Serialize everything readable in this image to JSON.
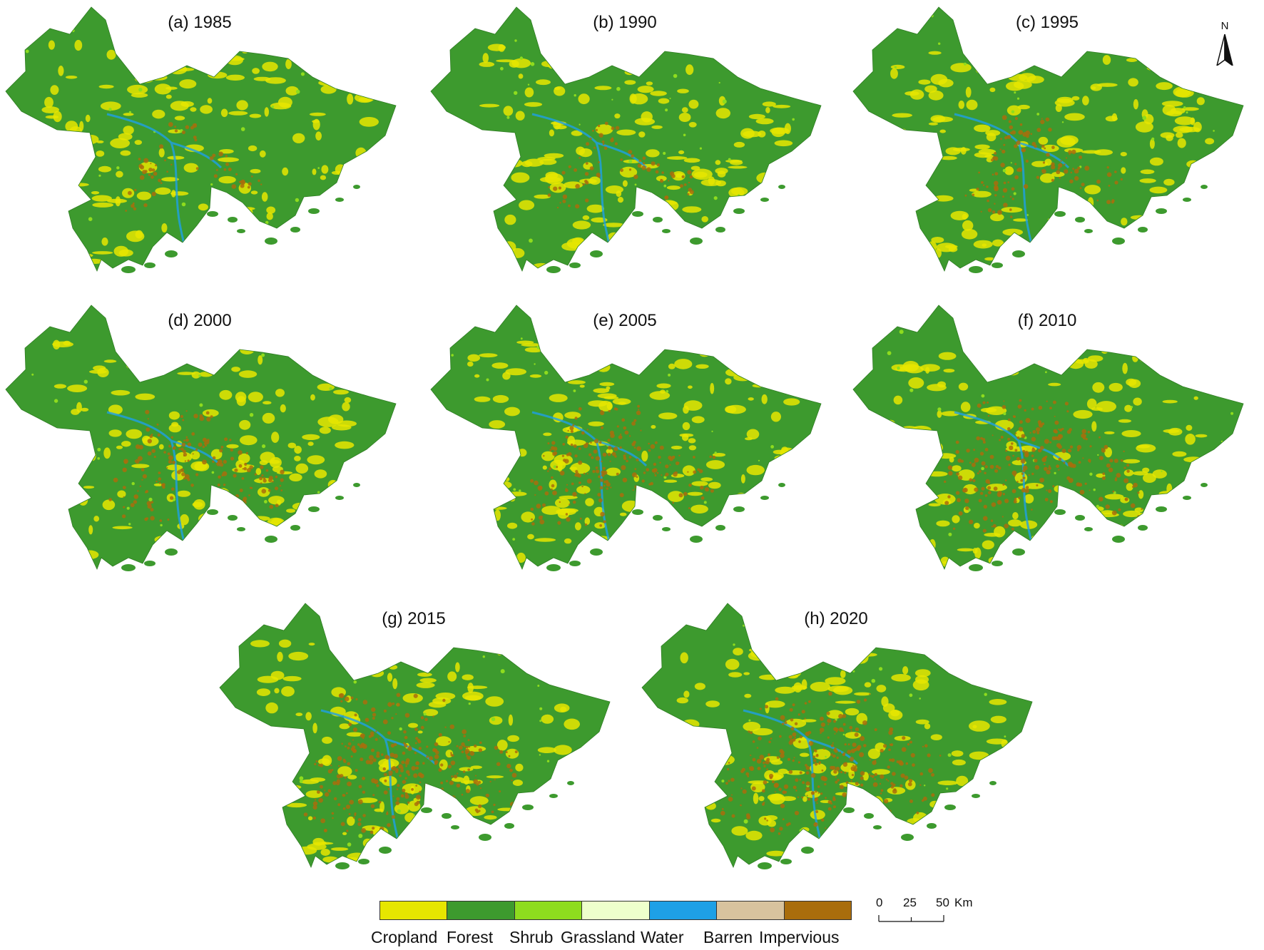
{
  "panels": [
    {
      "label": "(a) 1985",
      "year": 1985,
      "impervious_level": 0.05
    },
    {
      "label": "(b) 1990",
      "year": 1990,
      "impervious_level": 0.08
    },
    {
      "label": "(c) 1995",
      "year": 1995,
      "impervious_level": 0.18
    },
    {
      "label": "(d) 2000",
      "year": 2000,
      "impervious_level": 0.3
    },
    {
      "label": "(e) 2005",
      "year": 2005,
      "impervious_level": 0.4
    },
    {
      "label": "(f) 2010",
      "year": 2010,
      "impervious_level": 0.52
    },
    {
      "label": "(g) 2015",
      "year": 2015,
      "impervious_level": 0.6
    },
    {
      "label": "(h) 2020",
      "year": 2020,
      "impervious_level": 0.66
    }
  ],
  "north_arrow": {
    "label": "N"
  },
  "legend": {
    "items": [
      {
        "label": "Cropland",
        "color": "#e6e600"
      },
      {
        "label": "Forest",
        "color": "#3d9a2e"
      },
      {
        "label": "Shrub",
        "color": "#8edc1e"
      },
      {
        "label": "Grassland",
        "color": "#eeffcc"
      },
      {
        "label": "Water",
        "color": "#1ea0e6"
      },
      {
        "label": "Barren",
        "color": "#d8c39e"
      },
      {
        "label": "Impervious",
        "color": "#a96d0c"
      }
    ]
  },
  "scale_bar": {
    "ticks": [
      "0",
      "25",
      "50"
    ],
    "unit": "Km"
  }
}
